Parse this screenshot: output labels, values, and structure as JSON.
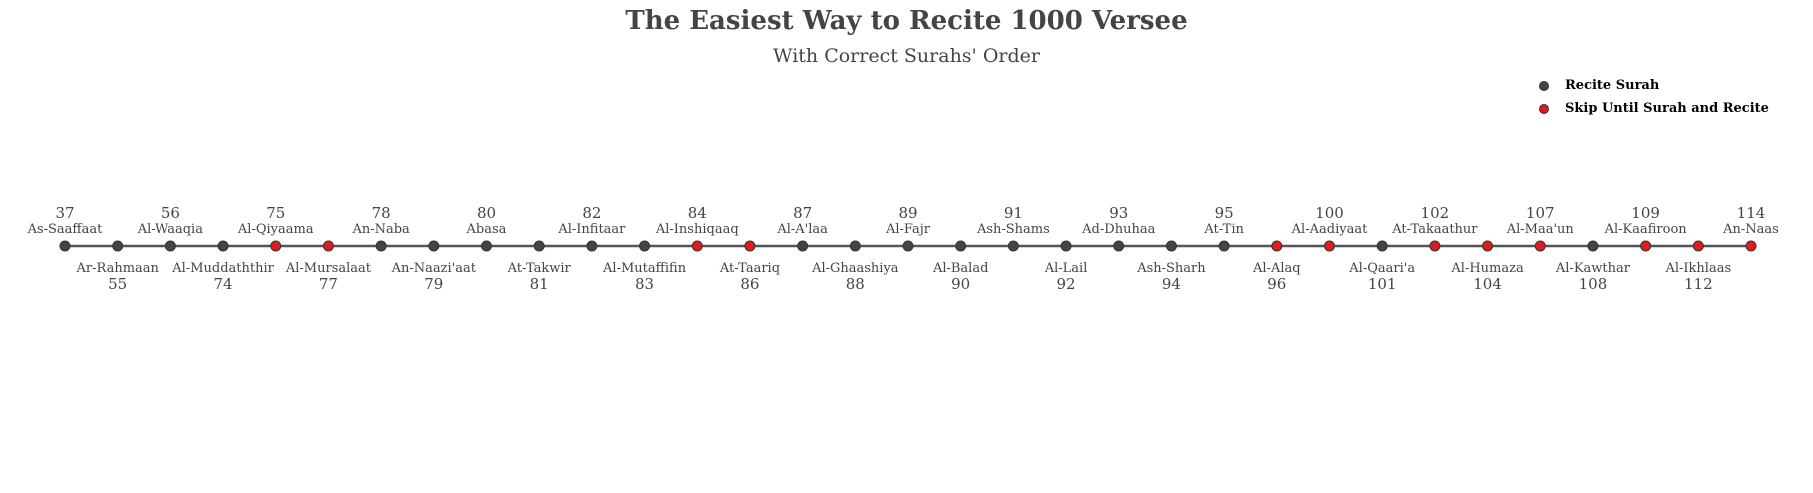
{
  "chart_data": {
    "type": "timeline",
    "title": "The Easiest Way to Recite 1000 Versee",
    "subtitle": "With Correct Surahs' Order",
    "colors": {
      "recite": "#444444",
      "skip": "#dd1c1c",
      "line": "#555555"
    },
    "legend": {
      "placement": "top-right",
      "items": [
        {
          "label": "Recite Surah",
          "color": "#444444"
        },
        {
          "label": "Skip Until Surah and Recite",
          "color": "#dd1c1c"
        }
      ]
    },
    "points": [
      {
        "number": "37",
        "name": "As-Saaffaat",
        "status": "recite"
      },
      {
        "number": "55",
        "name": "Ar-Rahmaan",
        "status": "recite"
      },
      {
        "number": "56",
        "name": "Al-Waaqia",
        "status": "recite"
      },
      {
        "number": "74",
        "name": "Al-Muddaththir",
        "status": "recite"
      },
      {
        "number": "75",
        "name": "Al-Qiyaama",
        "status": "skip"
      },
      {
        "number": "77",
        "name": "Al-Mursalaat",
        "status": "skip"
      },
      {
        "number": "78",
        "name": "An-Naba",
        "status": "recite"
      },
      {
        "number": "79",
        "name": "An-Naazi'aat",
        "status": "recite"
      },
      {
        "number": "80",
        "name": "Abasa",
        "status": "recite"
      },
      {
        "number": "81",
        "name": "At-Takwir",
        "status": "recite"
      },
      {
        "number": "82",
        "name": "Al-Infitaar",
        "status": "recite"
      },
      {
        "number": "83",
        "name": "Al-Mutaffifin",
        "status": "recite"
      },
      {
        "number": "84",
        "name": "Al-Inshiqaaq",
        "status": "skip"
      },
      {
        "number": "86",
        "name": "At-Taariq",
        "status": "skip"
      },
      {
        "number": "87",
        "name": "Al-A'laa",
        "status": "recite"
      },
      {
        "number": "88",
        "name": "Al-Ghaashiya",
        "status": "recite"
      },
      {
        "number": "89",
        "name": "Al-Fajr",
        "status": "recite"
      },
      {
        "number": "90",
        "name": "Al-Balad",
        "status": "recite"
      },
      {
        "number": "91",
        "name": "Ash-Shams",
        "status": "recite"
      },
      {
        "number": "92",
        "name": "Al-Lail",
        "status": "recite"
      },
      {
        "number": "93",
        "name": "Ad-Dhuhaa",
        "status": "recite"
      },
      {
        "number": "94",
        "name": "Ash-Sharh",
        "status": "recite"
      },
      {
        "number": "95",
        "name": "At-Tin",
        "status": "recite"
      },
      {
        "number": "96",
        "name": "Al-Alaq",
        "status": "skip"
      },
      {
        "number": "100",
        "name": "Al-Aadiyaat",
        "status": "skip"
      },
      {
        "number": "101",
        "name": "Al-Qaari'a",
        "status": "recite"
      },
      {
        "number": "102",
        "name": "At-Takaathur",
        "status": "skip"
      },
      {
        "number": "104",
        "name": "Al-Humaza",
        "status": "skip"
      },
      {
        "number": "107",
        "name": "Al-Maa'un",
        "status": "skip"
      },
      {
        "number": "108",
        "name": "Al-Kawthar",
        "status": "recite"
      },
      {
        "number": "109",
        "name": "Al-Kaafiroon",
        "status": "skip"
      },
      {
        "number": "112",
        "name": "Al-Ikhlaas",
        "status": "skip"
      },
      {
        "number": "114",
        "name": "An-Naas",
        "status": "skip"
      }
    ]
  }
}
